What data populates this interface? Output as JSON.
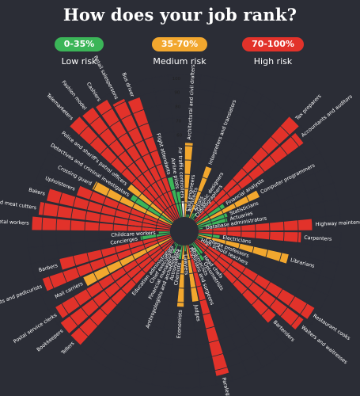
{
  "title": "How does your job rank?",
  "legend": [
    {
      "range": "0-35%",
      "label": "Low risk",
      "color": "#3bb558"
    },
    {
      "range": "35-70%",
      "label": "Medium risk",
      "color": "#f2a72e"
    },
    {
      "range": "70-100%",
      "label": "High risk",
      "color": "#e2322a"
    }
  ],
  "chart_data": {
    "type": "radial-bar",
    "title": "How does your job rank?",
    "scale": {
      "min": 0,
      "max": 100,
      "tick_labels": [
        "50",
        "60",
        "70",
        "80",
        "90",
        "100"
      ]
    },
    "bands": [
      {
        "range": "0-35%",
        "label": "Low risk",
        "color": "#3bb558"
      },
      {
        "range": "35-70%",
        "label": "Medium risk",
        "color": "#f2a72e"
      },
      {
        "range": "70-100%",
        "label": "High risk",
        "color": "#e2322a"
      }
    ],
    "categories": [
      "Architectural and civil drafters",
      "Civil engineers",
      "Architects",
      "Interpreters and translators",
      "Artists",
      "Graphic designers",
      "Choreographers",
      "Tax preparers",
      "Accountants and auditors",
      "Financial analysts",
      "Computer programmers",
      "Statisticians",
      "Actuaries",
      "Database administrators",
      "Highway maintenance workers",
      "Carpenters",
      "Electricians",
      "Librarians",
      "College professors",
      "High school teachers",
      "Restaurant cooks",
      "Waiters and waitresses",
      "Bartenders",
      "Head chefs",
      "Optometrists",
      "Pharmacists",
      "Physicians and surgeons",
      "Paralegals",
      "Judges",
      "Lawyers",
      "Economists",
      "Chemists",
      "Astronomers",
      "Anthropologists and archeologists",
      "Financial managers",
      "Chief executives",
      "Education administrators",
      "Tellers",
      "Bookkeepers",
      "Postal service clerks",
      "Mail carriers",
      "Manicurists and pedicurists",
      "Barbers",
      "Concierges",
      "Childcare workers",
      "Jewelers metal workers",
      "Butchers and meat cutters",
      "Bakers",
      "Upholsterers",
      "Crossing guard",
      "Detectives and criminal investigators",
      "Police and sheriff's patrol officers",
      "Telemarketers",
      "Fashion model",
      "Cashiers",
      "Retail salespersons",
      "Bus driver",
      "Flight attendants",
      "Airline pilots",
      "Air traffic controllers"
    ],
    "values": [
      52,
      2,
      2,
      38,
      4,
      5,
      1,
      99,
      94,
      23,
      48,
      22,
      21,
      3,
      80,
      72,
      15,
      65,
      4,
      1,
      96,
      94,
      77,
      10,
      14,
      1,
      0,
      94,
      40,
      4,
      43,
      10,
      1,
      1,
      7,
      2,
      1,
      98,
      98,
      95,
      68,
      95,
      80,
      21,
      8,
      97,
      93,
      89,
      70,
      61,
      34,
      40,
      99,
      98,
      97,
      92,
      89,
      29,
      18,
      11
    ]
  }
}
